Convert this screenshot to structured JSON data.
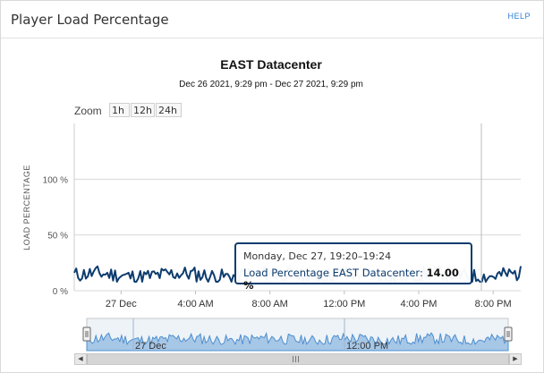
{
  "panel": {
    "title": "Player Load Percentage",
    "help_label": "HELP"
  },
  "colors": {
    "series": "#0d3c6e",
    "navigator_fill": "#a7c7e7",
    "navigator_line": "#4d8fcf",
    "grid": "#d8d8d8"
  },
  "zoom": {
    "label": "Zoom",
    "buttons": [
      "1h",
      "12h",
      "24h"
    ]
  },
  "chart_data": {
    "type": "line",
    "title": "EAST Datacenter",
    "subtitle": "Dec 26 2021, 9:29 pm - Dec 27 2021, 9:29 pm",
    "ylabel": "LOAD PERCENTAGE",
    "ylim": [
      0,
      150
    ],
    "y_ticks": [
      "0 %",
      "50 %",
      "100 %"
    ],
    "x_ticks": [
      "27 Dec",
      "4:00 AM",
      "8:00 AM",
      "12:00 PM",
      "4:00 PM",
      "8:00 PM"
    ],
    "x_range": [
      "2021-12-26 21:29",
      "2021-12-27 21:29"
    ],
    "series": [
      {
        "name": "Load Percentage EAST Datacenter",
        "approx_range": [
          8,
          22
        ],
        "typical": 14
      }
    ],
    "crosshair": "2021-12-27 19:22",
    "tooltip": {
      "date": "Monday, Dec 27, 19:20–19:24",
      "series_label": "Load Percentage EAST Datacenter:",
      "value": "14.00 %"
    },
    "navigator": {
      "x_ticks": [
        "27 Dec",
        "12:00 PM"
      ]
    }
  }
}
